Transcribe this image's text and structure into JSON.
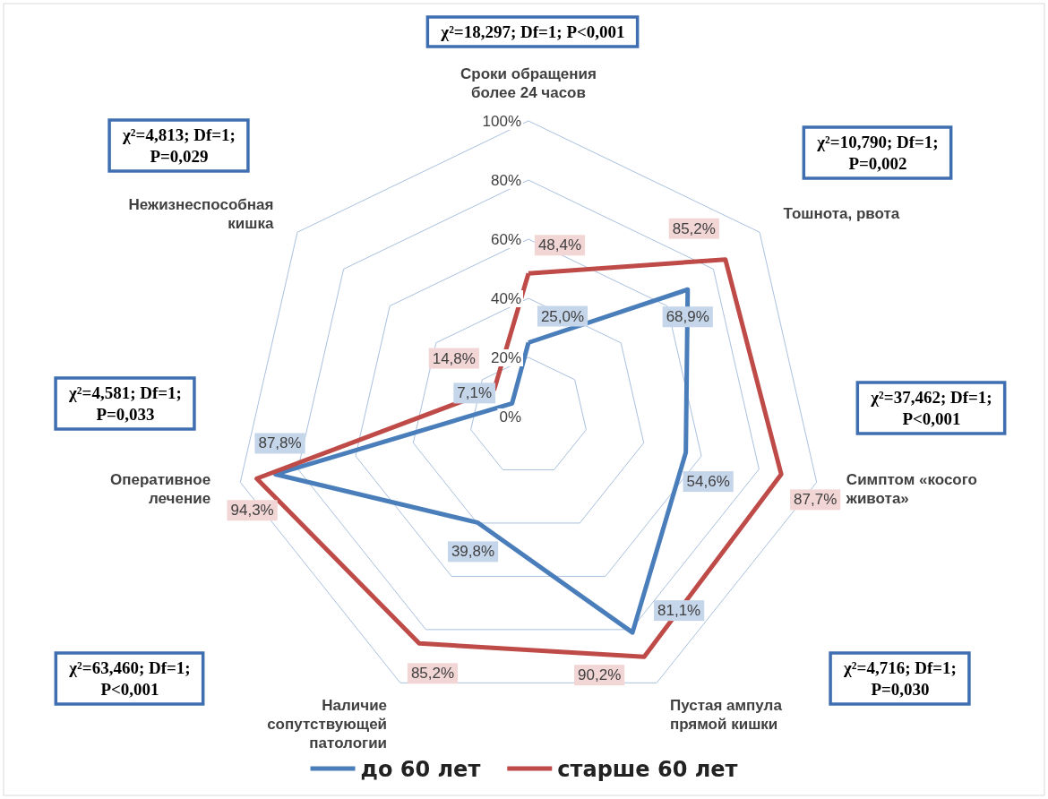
{
  "chart_data": {
    "type": "radar",
    "categories": [
      "Сроки обращения более 24 часов",
      "Тошнота, рвота",
      "Симптом «косого живота»",
      "Пустая ампула прямой кишки",
      "Наличие сопутствующей патологии",
      "Оперативное лечение",
      "Нежизнеспособная кишка"
    ],
    "series": [
      {
        "name": "до 60 лет",
        "color": "#4a7ebb",
        "values": [
          25.0,
          68.9,
          54.6,
          81.1,
          39.8,
          87.8,
          7.1
        ],
        "value_labels": [
          "25,0%",
          "68,9%",
          "54,6%",
          "81,1%",
          "39,8%",
          "87,8%",
          "7,1%"
        ]
      },
      {
        "name": "старше 60 лет",
        "color": "#be4b48",
        "values": [
          48.4,
          85.2,
          87.7,
          90.2,
          85.2,
          94.3,
          14.8
        ],
        "value_labels": [
          "48,4%",
          "85,2%",
          "87,7%",
          "90,2%",
          "85,2%",
          "94,3%",
          "14,8%"
        ]
      }
    ],
    "ylim": [
      0,
      100
    ],
    "yticks": [
      {
        "value": 0,
        "label": "0%"
      },
      {
        "value": 20,
        "label": "20%"
      },
      {
        "value": 40,
        "label": "40%"
      },
      {
        "value": 60,
        "label": "60%"
      },
      {
        "value": 80,
        "label": "80%"
      },
      {
        "value": 100,
        "label": "100%"
      }
    ],
    "grid": true,
    "legend": "bottom",
    "marker": "none",
    "line_style": "solid",
    "annotations": [
      "χ²=18,297; Df=1; P<0,001",
      "χ²=10,790; Df=1; P=0,002",
      "χ²=37,462; Df=1; P<0,001",
      "χ²=4,716; Df=1; P=0,030",
      "χ²=63,460; Df=1; P<0,001",
      "χ²=4,581; Df=1; P=0,033",
      "χ²=4,813; Df=1; P=0,029"
    ]
  }
}
